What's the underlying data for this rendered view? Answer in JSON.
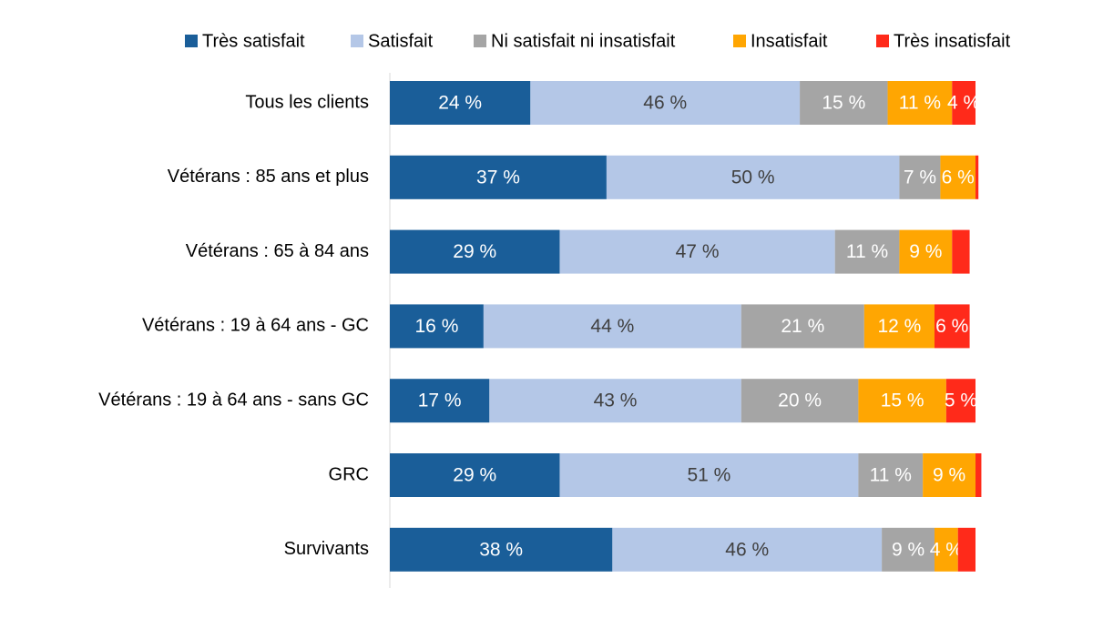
{
  "chart_data": {
    "type": "stacked-bar-horizontal",
    "categories": [
      "Tous les clients",
      "Vétérans : 85 ans et plus",
      "Vétérans : 65 à 84 ans",
      "Vétérans : 19 à 64 ans - GC",
      "Vétérans : 19 à 64 ans - sans GC",
      "GRC",
      "Survivants"
    ],
    "xlim": [
      0,
      100
    ],
    "series": [
      {
        "name": "Très satisfait",
        "color": "#1a5e99",
        "label_color": "#ffffff",
        "values": [
          24,
          37,
          29,
          16,
          17,
          29,
          38
        ],
        "value_labels": [
          "24 %",
          "37 %",
          "29 %",
          "16 %",
          "17 %",
          "29 %",
          "38 %"
        ]
      },
      {
        "name": "Satisfait",
        "color": "#b4c7e7",
        "label_color": "#404040",
        "values": [
          46,
          50,
          47,
          44,
          43,
          51,
          46
        ],
        "value_labels": [
          "46 %",
          "50 %",
          "47 %",
          "44 %",
          "43 %",
          "51 %",
          "46 %"
        ]
      },
      {
        "name": "Ni satisfait ni insatisfait",
        "color": "#a5a5a5",
        "label_color": "#ffffff",
        "values": [
          15,
          7,
          11,
          21,
          20,
          11,
          9
        ],
        "value_labels": [
          "15 %",
          "7 %",
          "11 %",
          "21 %",
          "20 %",
          "11 %",
          "9 %"
        ]
      },
      {
        "name": "Insatisfait",
        "color": "#ffa602",
        "label_color": "#ffffff",
        "values": [
          11,
          6,
          9,
          12,
          15,
          9,
          4
        ],
        "value_labels": [
          "11 %",
          "6 %",
          "9 %",
          "12 %",
          "15 %",
          "9 %",
          "4 %"
        ]
      },
      {
        "name": "Très insatisfait",
        "color": "#ff2a1a",
        "label_color": "#ffffff",
        "values": [
          4,
          0.5,
          3,
          6,
          5,
          1,
          3
        ],
        "value_labels": [
          "4 %",
          null,
          null,
          "6 %",
          "5 %",
          null,
          null
        ]
      }
    ]
  }
}
